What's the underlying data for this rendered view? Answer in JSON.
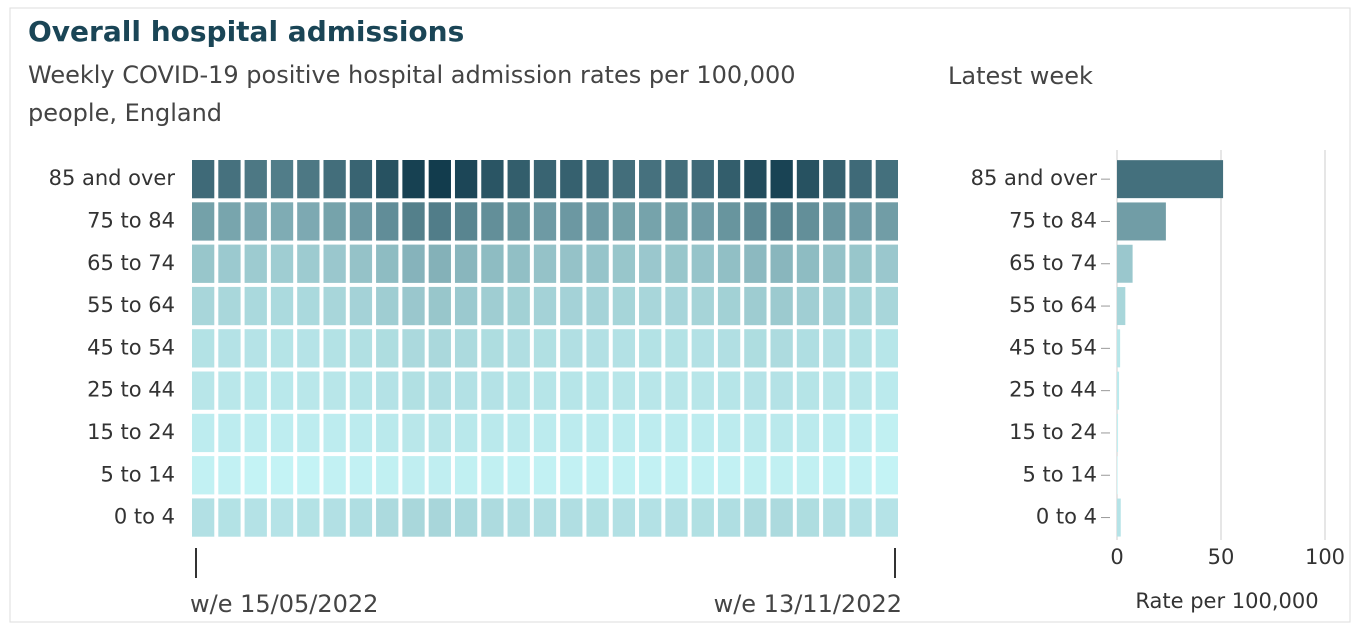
{
  "chart_data": [
    {
      "type": "heatmap",
      "title": "Overall hospital admissions",
      "subtitle": [
        "Weekly COVID-19 positive hospital admission rates per 100,000",
        "people, England"
      ],
      "x": [
        "w/e 15/05/2022",
        null,
        null,
        null,
        null,
        null,
        null,
        null,
        null,
        null,
        null,
        null,
        null,
        null,
        null,
        null,
        null,
        null,
        null,
        null,
        null,
        null,
        null,
        null,
        null,
        null,
        "w/e 13/11/2022"
      ],
      "categories": [
        "85 and over",
        "75 to 84",
        "65 to 74",
        "55 to 64",
        "45 to 54",
        "25 to 44",
        "15 to 24",
        "5 to 14",
        "0 to 4"
      ],
      "colors": [
        "#c4f3f5",
        "#123c4d"
      ],
      "values": [
        [
          55,
          50,
          45,
          42,
          45,
          52,
          60,
          75,
          90,
          95,
          85,
          72,
          65,
          60,
          62,
          58,
          52,
          50,
          52,
          55,
          65,
          80,
          88,
          75,
          62,
          55,
          51
        ],
        [
          22,
          20,
          18,
          17,
          18,
          21,
          25,
          32,
          40,
          42,
          37,
          31,
          27,
          25,
          26,
          24,
          22,
          21,
          22,
          24,
          28,
          34,
          37,
          31,
          26,
          24,
          23.5
        ],
        [
          8,
          7,
          6.5,
          6,
          6.5,
          7.5,
          9,
          11,
          14,
          15,
          13,
          11,
          10,
          9,
          9,
          8.5,
          8,
          7.5,
          8,
          8.5,
          10,
          12,
          13,
          11,
          9,
          8,
          7.5
        ],
        [
          4,
          3.8,
          3.5,
          3.3,
          3.5,
          4,
          4.8,
          6,
          7.5,
          8,
          7,
          6,
          5.2,
          4.8,
          4.9,
          4.6,
          4.3,
          4,
          4.2,
          4.5,
          5.2,
          6.3,
          6.8,
          5.8,
          4.8,
          4.3,
          4
        ],
        [
          2,
          1.9,
          1.8,
          1.7,
          1.8,
          2,
          2.3,
          2.8,
          3.4,
          3.6,
          3.2,
          2.8,
          2.5,
          2.3,
          2.4,
          2.2,
          2.1,
          2,
          2,
          2.1,
          2.4,
          2.8,
          3,
          2.6,
          2.2,
          2,
          1.5
        ],
        [
          1.4,
          1.3,
          1.2,
          1.2,
          1.3,
          1.4,
          1.6,
          1.9,
          2.3,
          2.4,
          2.1,
          1.9,
          1.7,
          1.6,
          1.6,
          1.5,
          1.4,
          1.4,
          1.4,
          1.4,
          1.6,
          1.8,
          1.9,
          1.7,
          1.4,
          1.3,
          1
        ],
        [
          0.8,
          0.8,
          0.7,
          0.7,
          0.8,
          0.8,
          0.9,
          1.1,
          1.3,
          1.4,
          1.2,
          1.1,
          1,
          0.9,
          0.9,
          0.9,
          0.8,
          0.8,
          0.8,
          0.8,
          0.9,
          1,
          1.1,
          1,
          0.8,
          0.7,
          0.5
        ],
        [
          0.4,
          0.4,
          0.3,
          0.3,
          0.3,
          0.4,
          0.4,
          0.5,
          0.6,
          0.6,
          0.5,
          0.5,
          0.4,
          0.4,
          0.4,
          0.4,
          0.4,
          0.4,
          0.4,
          0.4,
          0.4,
          0.5,
          0.5,
          0.5,
          0.4,
          0.4,
          0.3
        ],
        [
          2.2,
          2,
          1.9,
          1.8,
          2,
          2.2,
          2.6,
          3.2,
          3.8,
          4,
          3.5,
          3,
          2.7,
          2.5,
          2.5,
          2.3,
          2.2,
          2.1,
          2.2,
          2.3,
          2.6,
          3,
          3.2,
          2.8,
          2.4,
          2.1,
          1.8
        ]
      ]
    },
    {
      "type": "bar",
      "orientation": "horizontal",
      "title": "Latest week",
      "categories": [
        "85 and over",
        "75 to 84",
        "65 to 74",
        "55 to 64",
        "45 to 54",
        "25 to 44",
        "15 to 24",
        "5 to 14",
        "0 to 4"
      ],
      "values": [
        51,
        23.5,
        7.5,
        4,
        1.5,
        1,
        0.5,
        0.3,
        1.8
      ],
      "xlim": [
        0,
        100
      ],
      "xticks": [
        0,
        50,
        100
      ],
      "xlabel": "Rate per 100,000",
      "grid": true
    }
  ]
}
